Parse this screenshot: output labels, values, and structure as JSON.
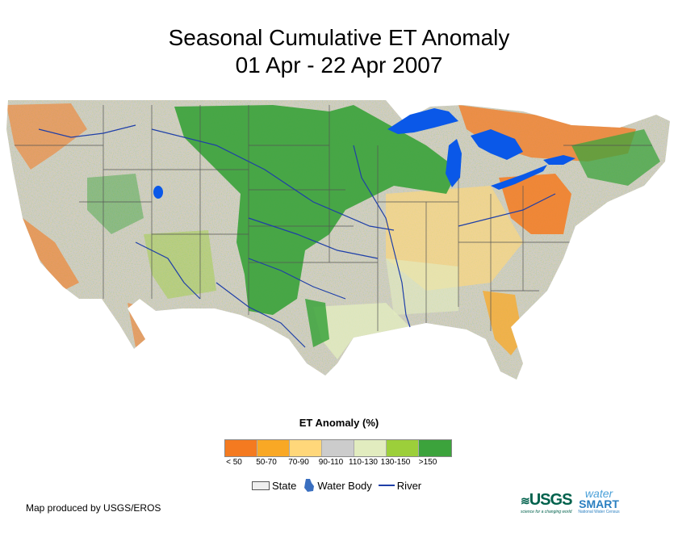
{
  "title": {
    "line1": "Seasonal Cumulative ET Anomaly",
    "line2": "01 Apr - 22 Apr 2007"
  },
  "legend": {
    "title": "ET Anomaly (%)",
    "classes": [
      {
        "label": "< 50",
        "color": "#f47a20"
      },
      {
        "label": "50-70",
        "color": "#f9a825"
      },
      {
        "label": "70-90",
        "color": "#ffd77a"
      },
      {
        "label": "90-110",
        "color": "#cccccc"
      },
      {
        "label": "110-130",
        "color": "#e2ecbf"
      },
      {
        "label": "130-150",
        "color": "#9ccf3a"
      },
      {
        "label": ">150",
        "color": "#3ca33c"
      }
    ],
    "symbols": {
      "state": "State",
      "water": "Water Body",
      "river": "River"
    }
  },
  "credit": "Map produced by USGS/EROS",
  "logos": {
    "usgs": "USGS",
    "usgs_tagline": "science for a changing world",
    "watersmart_top": "water",
    "watersmart_main": "SMART",
    "watersmart_sub": "National Water Census"
  },
  "colors": {
    "water": "#0a58e8",
    "river": "#1f3fa8",
    "state_line": "#555555"
  }
}
